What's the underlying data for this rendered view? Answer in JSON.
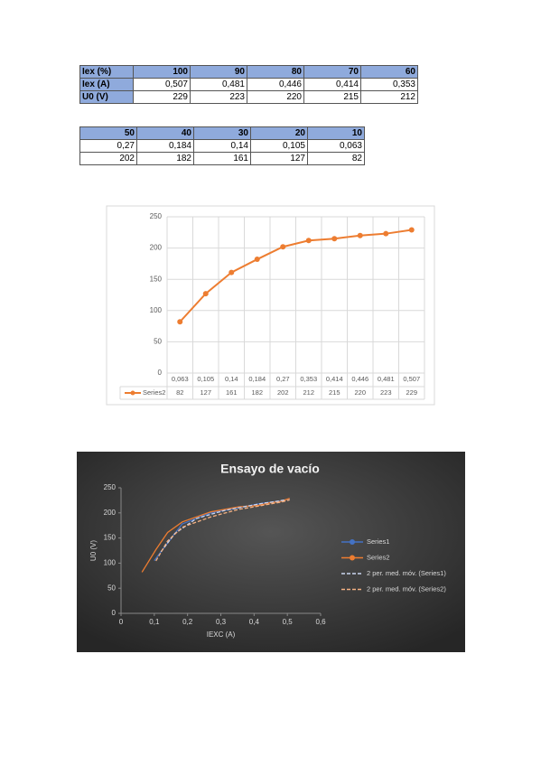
{
  "tables": [
    {
      "rows": [
        [
          "Iex (%)",
          "100",
          "90",
          "80",
          "70",
          "60"
        ],
        [
          "Iex (A)",
          "0,507",
          "0,481",
          "0,446",
          "0,414",
          "0,353"
        ],
        [
          "U0 (V)",
          "229",
          "223",
          "220",
          "215",
          "212"
        ]
      ]
    },
    {
      "rows": [
        [
          "50",
          "40",
          "30",
          "20",
          "10"
        ],
        [
          "0,27",
          "0,184",
          "0,14",
          "0,105",
          "0,063"
        ],
        [
          "202",
          "182",
          "161",
          "127",
          "82"
        ]
      ]
    }
  ],
  "chart_data": [
    {
      "type": "line",
      "categories": [
        "0,063",
        "0,105",
        "0,14",
        "0,184",
        "0,27",
        "0,353",
        "0,414",
        "0,446",
        "0,481",
        "0,507"
      ],
      "series": [
        {
          "name": "Series2",
          "color": "#ed7d31",
          "values": [
            82,
            127,
            161,
            182,
            202,
            212,
            215,
            220,
            223,
            229
          ]
        }
      ],
      "ylim": [
        0,
        250
      ],
      "yticks": [
        0,
        50,
        100,
        150,
        200,
        250
      ],
      "grid": true
    },
    {
      "type": "scatter",
      "title": "Ensayo de vacío",
      "x_label": "IEXC (A)",
      "y_label": "U0 (V)",
      "xlim": [
        0,
        0.6
      ],
      "xticks": [
        0,
        {
          "value": 0.1,
          "label": "0,1"
        },
        {
          "value": 0.2,
          "label": "0,2"
        },
        {
          "value": 0.3,
          "label": "0,3"
        },
        {
          "value": 0.4,
          "label": "0,4"
        },
        {
          "value": 0.5,
          "label": "0,5"
        },
        {
          "value": 0.6,
          "label": "0,6"
        }
      ],
      "ylim": [
        0,
        250
      ],
      "yticks": [
        0,
        50,
        100,
        150,
        200,
        250
      ],
      "series": [
        {
          "name": "Series1",
          "color": "#4472c4",
          "dash": false,
          "x": [
            0.1,
            0.14,
            0.184,
            0.27,
            0.353,
            0.414,
            0.446,
            0.481,
            0.507
          ],
          "values": [
            105,
            140,
            178,
            200,
            210,
            218,
            221,
            224,
            228
          ]
        },
        {
          "name": "Series2",
          "color": "#ed7d31",
          "dash": false,
          "x": [
            0.063,
            0.105,
            0.14,
            0.184,
            0.27,
            0.353,
            0.414,
            0.446,
            0.481,
            0.507
          ],
          "values": [
            82,
            127,
            161,
            182,
            202,
            212,
            215,
            220,
            223,
            229
          ]
        },
        {
          "name": "2 per. med. móv. (Series1)",
          "color": "#c9d6f0",
          "dash": true,
          "x": [
            0.12,
            0.162,
            0.227,
            0.312,
            0.384,
            0.43,
            0.464,
            0.494
          ],
          "values": [
            122.5,
            159,
            189,
            205,
            214,
            219.5,
            222.5,
            226
          ]
        },
        {
          "name": "2 per. med. móv. (Series2)",
          "color": "#f4b183",
          "dash": true,
          "x": [
            0.105,
            0.14,
            0.184,
            0.27,
            0.353,
            0.414,
            0.446,
            0.481,
            0.507
          ],
          "values": [
            104.5,
            144,
            171.5,
            192,
            207,
            213.5,
            217.5,
            221.5,
            226
          ]
        }
      ]
    }
  ]
}
